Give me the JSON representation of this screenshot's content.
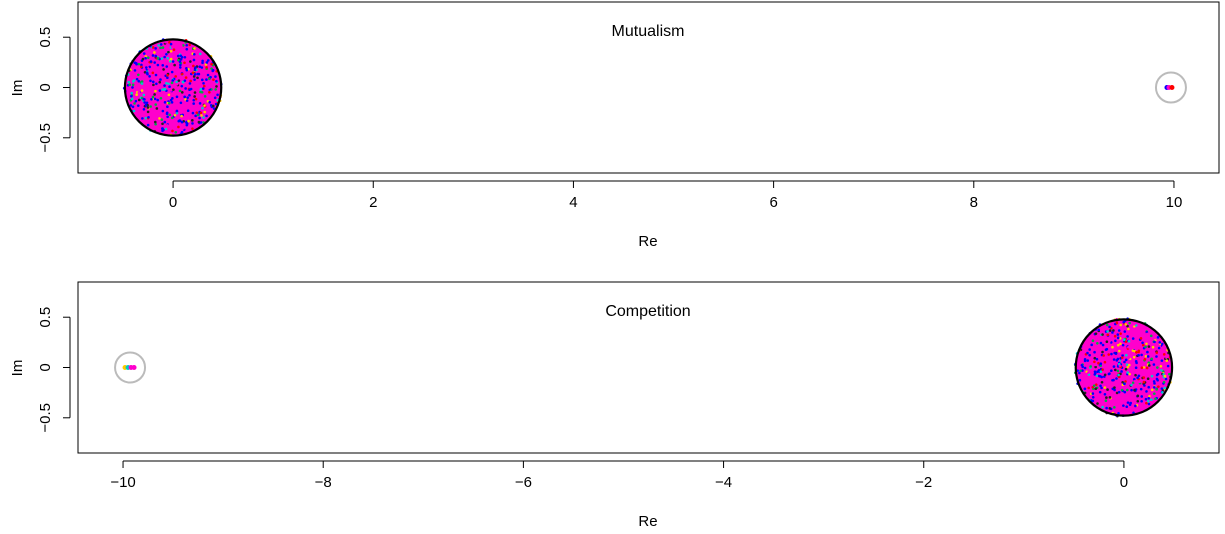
{
  "chart_data": [
    {
      "type": "scatter",
      "title": "Mutualism",
      "xlabel": "Re",
      "ylabel": "Im",
      "xlim": [
        -0.95,
        10.45
      ],
      "ylim": [
        -0.85,
        0.85
      ],
      "xticks": [
        0,
        2,
        4,
        6,
        8,
        10
      ],
      "yticks": [
        0.5,
        0,
        -0.5
      ],
      "ytick_labels": [
        "0.5",
        "0",
        "−0.5"
      ],
      "bulk": {
        "center": [
          0,
          0
        ],
        "radius": 0.48,
        "color": "#ff00cc",
        "boundary_color": "#000000"
      },
      "outlier_circle": {
        "center": [
          9.97,
          0.0
        ],
        "color": "#bbbbbb"
      },
      "outlier_points": [
        {
          "x": 9.93,
          "y": 0,
          "color": "#0000ff"
        },
        {
          "x": 9.95,
          "y": 0,
          "color": "#ff00cc"
        },
        {
          "x": 9.98,
          "y": 0,
          "color": "#ff0000"
        }
      ]
    },
    {
      "type": "scatter",
      "title": "Competition",
      "xlabel": "Re",
      "ylabel": "Im",
      "xlim": [
        -10.45,
        0.95
      ],
      "ylim": [
        -0.85,
        0.85
      ],
      "xticks": [
        -10,
        -8,
        -6,
        -4,
        -2,
        0
      ],
      "xtick_labels": [
        "−10",
        "−8",
        "−6",
        "−4",
        "−2",
        "0"
      ],
      "yticks": [
        0.5,
        0,
        -0.5
      ],
      "ytick_labels": [
        "0.5",
        "0",
        "−0.5"
      ],
      "bulk": {
        "center": [
          0,
          0
        ],
        "radius": 0.48,
        "color": "#ff00cc",
        "boundary_color": "#000000"
      },
      "outlier_circle": {
        "center": [
          -9.93,
          0.0
        ],
        "color": "#bbbbbb"
      },
      "outlier_points": [
        {
          "x": -9.98,
          "y": 0,
          "color": "#ffcc00"
        },
        {
          "x": -9.95,
          "y": 0,
          "color": "#00cccc"
        },
        {
          "x": -9.92,
          "y": 0,
          "color": "#ff00cc"
        },
        {
          "x": -9.89,
          "y": 0,
          "color": "#ff00cc"
        }
      ]
    }
  ],
  "palette": [
    "#ff00cc",
    "#0000ff",
    "#00aa44",
    "#ff0000",
    "#00cccc",
    "#ffcc00",
    "#222222"
  ]
}
